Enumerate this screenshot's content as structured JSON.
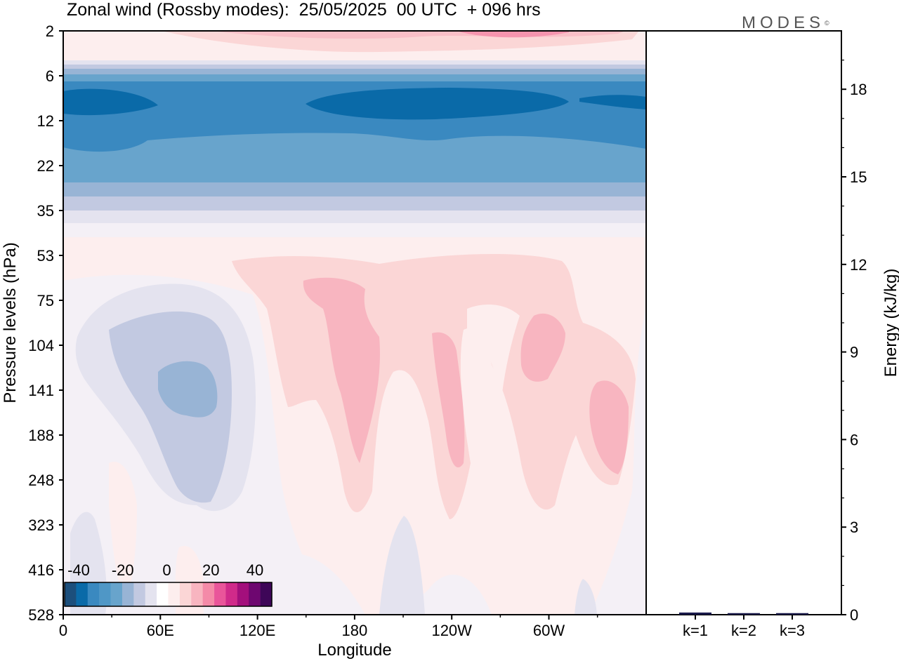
{
  "logo_text": "MODES",
  "logo_mark": "©",
  "colors": {
    "neg4": "#1c4f7c",
    "neg3": "#0a6aa8",
    "neg2": "#3a89c0",
    "neg1": "#68a4cc",
    "neg0": "#98b4d5",
    "neg00": "#c2c9e1",
    "negw": "#e4e3ef",
    "zero_neg": "#f4f0f6",
    "zero_pos": "#fdeeee",
    "pos1": "#fbd6d6",
    "pos2": "#f8b5c0",
    "pos3": "#f48aa8",
    "pos4": "#e9559a",
    "pos5": "#d02a8a",
    "pos6": "#a30f7c",
    "pos7": "#6e0770",
    "pos8": "#3e0658"
  },
  "chart_data": [
    {
      "type": "heatmap",
      "title": "Zonal wind (Rossby modes):  25/05/2025  00 UTC  + 096 hrs",
      "xlabel": "Longitude",
      "ylabel": "Pressure levels (hPa)",
      "x_ticks": [
        "0",
        "60E",
        "120E",
        "180",
        "120W",
        "60W"
      ],
      "y_ticks": [
        "2",
        "6",
        "12",
        "22",
        "35",
        "53",
        "75",
        "104",
        "141",
        "188",
        "248",
        "323",
        "416",
        "528"
      ],
      "colorbar": {
        "labels": [
          "-40",
          "-20",
          "0",
          "20",
          "40"
        ],
        "colors": [
          "#1c4f7c",
          "#0a6aa8",
          "#3a89c0",
          "#4f97c6",
          "#68a4cc",
          "#98b4d5",
          "#c2c9e1",
          "#e4e3ef",
          "#ffffff",
          "#fdeeee",
          "#fbd6d6",
          "#f8b5c0",
          "#f48aa8",
          "#e9559a",
          "#d02a8a",
          "#a30f7c",
          "#6e0770",
          "#3e0658"
        ]
      }
    },
    {
      "type": "bar",
      "categories": [
        "k=1",
        "k=2",
        "k=3"
      ],
      "values": [
        0.05,
        0.03,
        0.03
      ],
      "ylabel": "Energy (kJ/kg)",
      "y_ticks": [
        "0",
        "3",
        "6",
        "9",
        "12",
        "15",
        "18"
      ],
      "ylim": [
        0,
        20
      ]
    }
  ]
}
